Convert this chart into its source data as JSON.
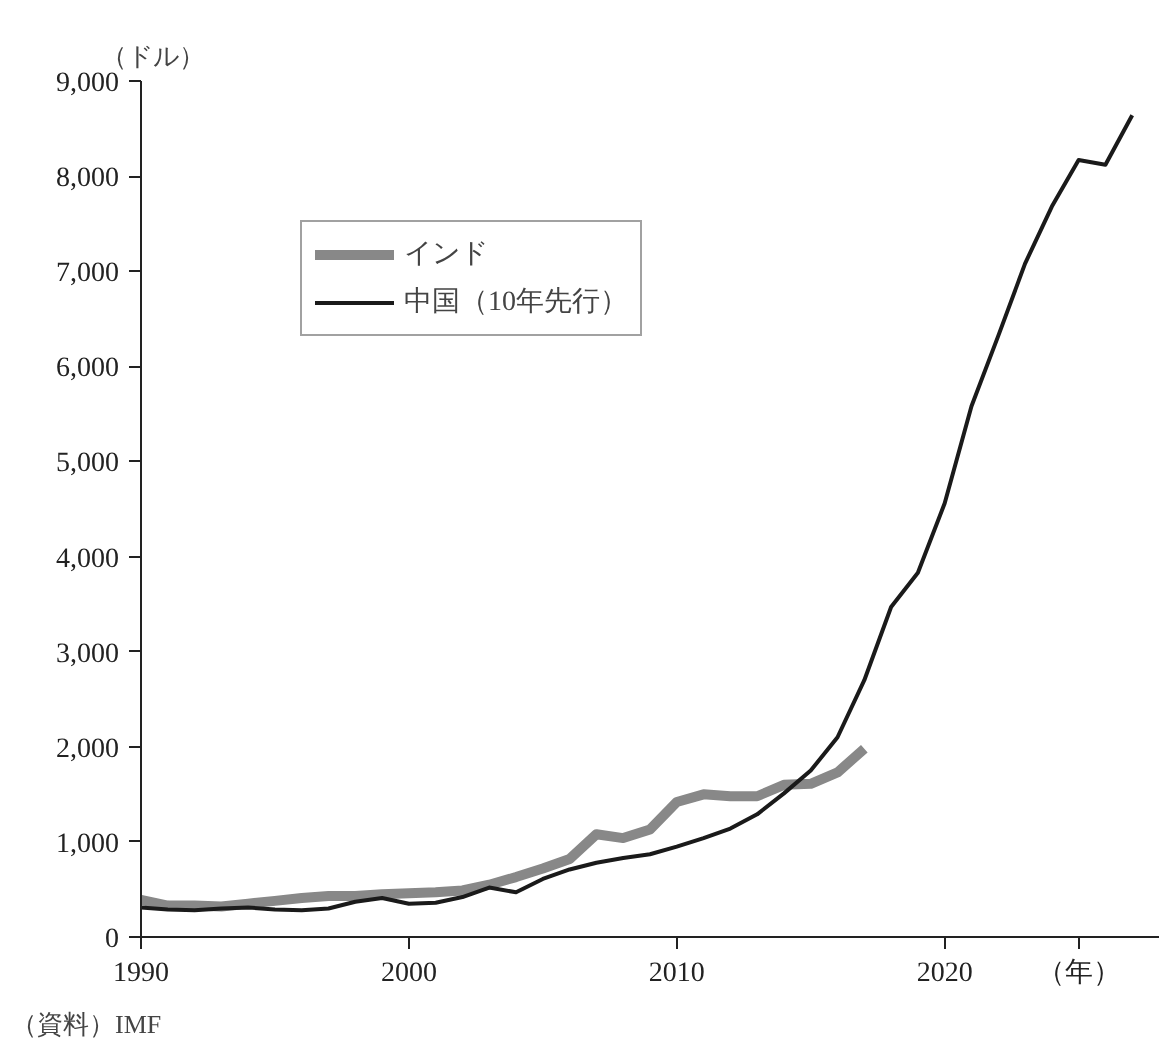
{
  "chart_data": {
    "type": "line",
    "ylabel": "（ドル）",
    "annotations": [
      "（資料）IMF"
    ],
    "x": [
      1990,
      1991,
      1992,
      1993,
      1994,
      1995,
      1996,
      1997,
      1998,
      1999,
      2000,
      2001,
      2002,
      2003,
      2004,
      2005,
      2006,
      2007,
      2008,
      2009,
      2010,
      2011,
      2012,
      2013,
      2014,
      2015,
      2016,
      2017,
      2018,
      2019,
      2020,
      2021,
      2022,
      2023,
      2024,
      2025,
      2026,
      2027
    ],
    "series": [
      {
        "name": "インド",
        "color": "#888888",
        "x": [
          1990,
          1991,
          1992,
          1993,
          1994,
          1995,
          1996,
          1997,
          1998,
          1999,
          2000,
          2001,
          2002,
          2003,
          2004,
          2005,
          2006,
          2007,
          2008,
          2009,
          2010,
          2011,
          2012,
          2013,
          2014,
          2015,
          2016,
          2017
        ],
        "values": [
          390,
          330,
          330,
          320,
          350,
          380,
          410,
          430,
          430,
          450,
          460,
          470,
          490,
          550,
          630,
          720,
          820,
          1080,
          1040,
          1130,
          1420,
          1500,
          1480,
          1480,
          1600,
          1610,
          1730,
          1980
        ]
      },
      {
        "name": "中国（10年先行）",
        "color": "#1a1a1a",
        "values": [
          310,
          290,
          280,
          300,
          310,
          290,
          280,
          300,
          370,
          410,
          350,
          360,
          420,
          520,
          470,
          610,
          710,
          780,
          830,
          870,
          950,
          1040,
          1140,
          1290,
          1510,
          1750,
          2100,
          2700,
          3470,
          3830,
          4560,
          5580,
          6320,
          7080,
          7680,
          8170,
          8120,
          8640
        ]
      }
    ],
    "xlim": [
      1990,
      2028
    ],
    "ylim": [
      0,
      9000
    ],
    "xticks": [
      1990,
      2000,
      2010,
      2020,
      {
        "value": 2025,
        "label": "（年）"
      }
    ],
    "yticks": [
      {
        "value": 0,
        "label": "0"
      },
      {
        "value": 1000,
        "label": "1,000"
      },
      {
        "value": 2000,
        "label": "2,000"
      },
      {
        "value": 3000,
        "label": "3,000"
      },
      {
        "value": 4000,
        "label": "4,000"
      },
      {
        "value": 5000,
        "label": "5,000"
      },
      {
        "value": 6000,
        "label": "6,000"
      },
      {
        "value": 7000,
        "label": "7,000"
      },
      {
        "value": 8000,
        "label": "8,000"
      },
      {
        "value": 9000,
        "label": "9,000"
      }
    ],
    "grid": false,
    "legend": "top left"
  }
}
